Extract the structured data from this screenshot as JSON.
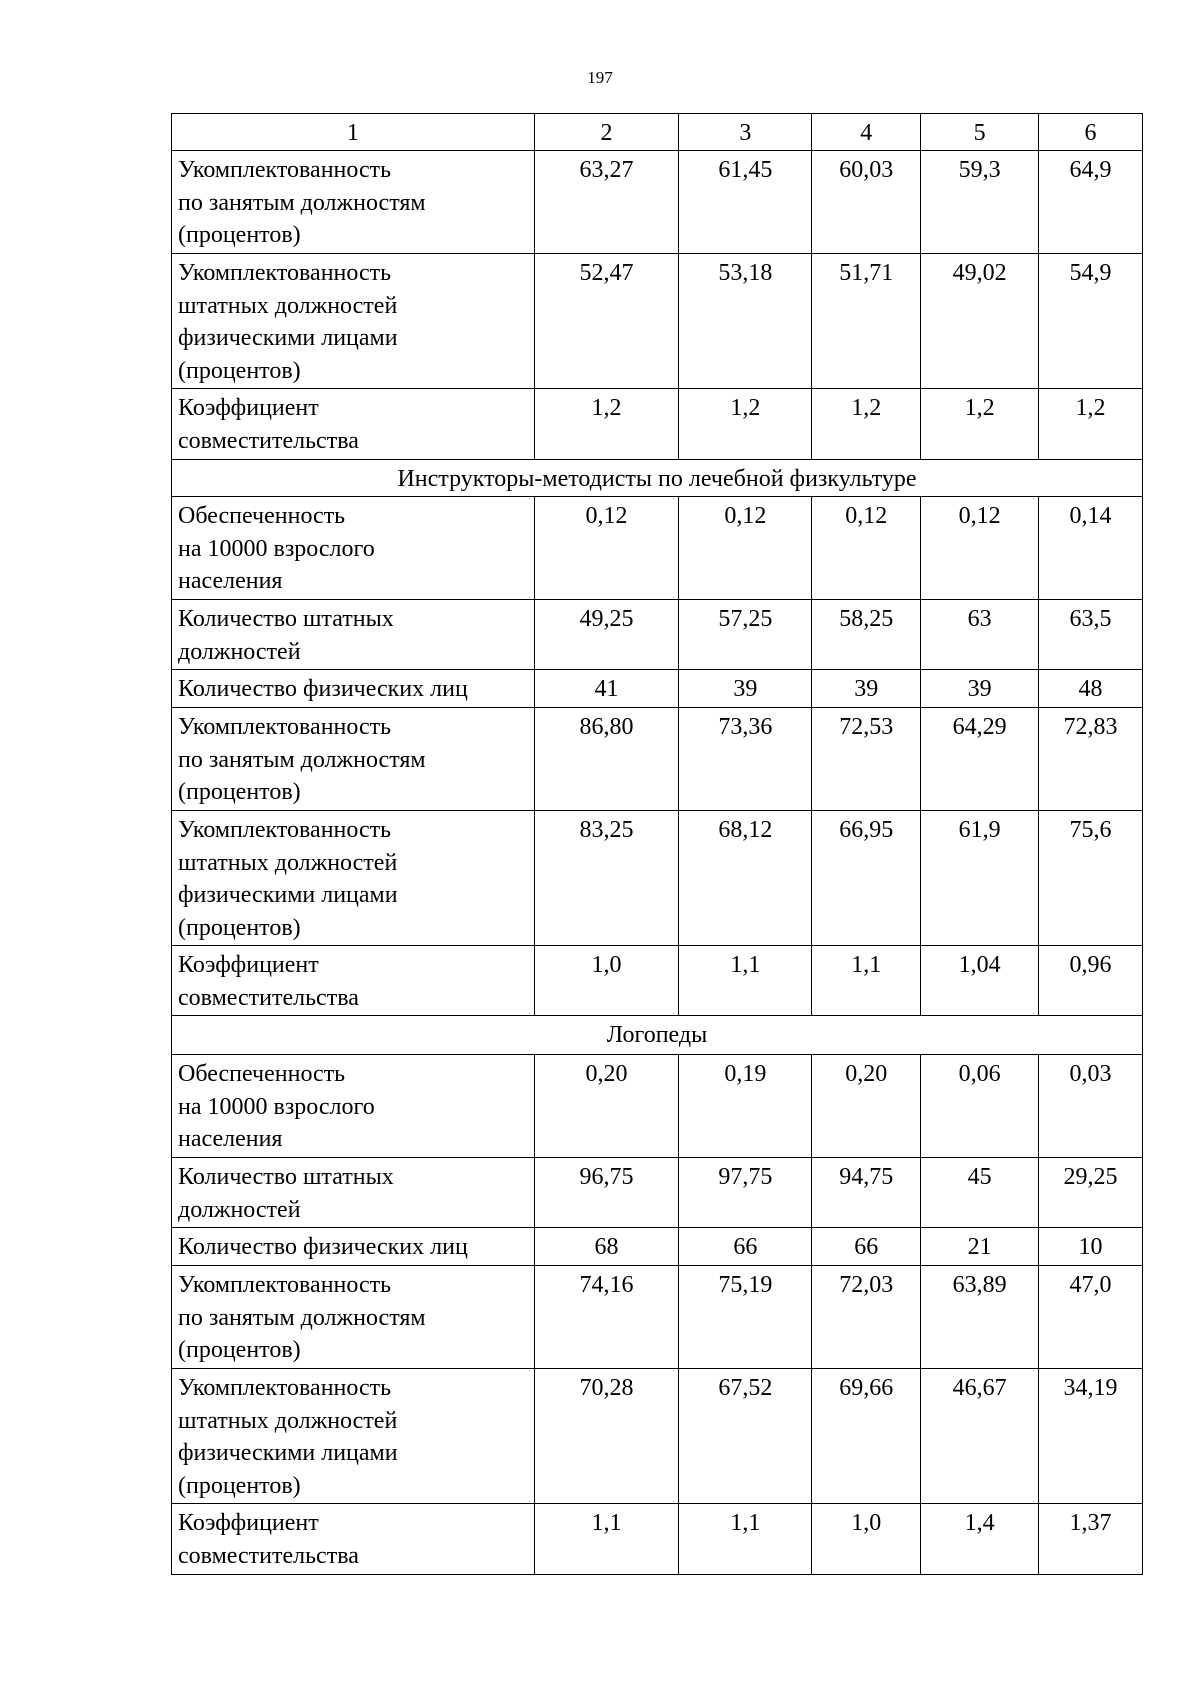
{
  "page_number": "197",
  "header": [
    "1",
    "2",
    "3",
    "4",
    "5",
    "6"
  ],
  "rows": [
    {
      "type": "data",
      "label": "Укомплектованность\nпо занятым должностям\n(процентов)",
      "values": [
        "63,27",
        "61,45",
        "60,03",
        "59,3",
        "64,9"
      ]
    },
    {
      "type": "data",
      "label": "Укомплектованность\nштатных должностей\nфизическими лицами\n(процентов)",
      "values": [
        "52,47",
        "53,18",
        "51,71",
        "49,02",
        "54,9"
      ]
    },
    {
      "type": "data",
      "label": "Коэффициент\nсовместительства",
      "values": [
        "1,2",
        "1,2",
        "1,2",
        "1,2",
        "1,2"
      ]
    },
    {
      "type": "section",
      "label": "Инструкторы-методисты по лечебной физкультуре"
    },
    {
      "type": "data",
      "label": "Обеспеченность\nна 10000 взрослого\nнаселения",
      "values": [
        "0,12",
        "0,12",
        "0,12",
        "0,12",
        "0,14"
      ]
    },
    {
      "type": "data",
      "label": "Количество штатных\nдолжностей",
      "values": [
        "49,25",
        "57,25",
        "58,25",
        "63",
        "63,5"
      ]
    },
    {
      "type": "data",
      "label": "Количество физических лиц",
      "values": [
        "41",
        "39",
        "39",
        "39",
        "48"
      ]
    },
    {
      "type": "data",
      "label": "Укомплектованность\nпо занятым должностям\n(процентов)",
      "values": [
        "86,80",
        "73,36",
        "72,53",
        "64,29",
        "72,83"
      ]
    },
    {
      "type": "data",
      "label": "Укомплектованность\nштатных должностей\nфизическими лицами\n(процентов)",
      "values": [
        "83,25",
        "68,12",
        "66,95",
        "61,9",
        "75,6"
      ]
    },
    {
      "type": "data",
      "label": "Коэффициент\nсовместительства",
      "values": [
        "1,0",
        "1,1",
        "1,1",
        "1,04",
        "0,96"
      ]
    },
    {
      "type": "section",
      "label": "Логопеды"
    },
    {
      "type": "data",
      "label": "Обеспеченность\nна 10000 взрослого\nнаселения",
      "values": [
        "0,20",
        "0,19",
        "0,20",
        "0,06",
        "0,03"
      ]
    },
    {
      "type": "data",
      "label": "Количество штатных\nдолжностей",
      "values": [
        "96,75",
        "97,75",
        "94,75",
        "45",
        "29,25"
      ]
    },
    {
      "type": "data",
      "label": "Количество физических лиц",
      "values": [
        "68",
        "66",
        "66",
        "21",
        "10"
      ]
    },
    {
      "type": "data",
      "label": "Укомплектованность\nпо занятым должностям\n(процентов)",
      "values": [
        "74,16",
        "75,19",
        "72,03",
        "63,89",
        "47,0"
      ]
    },
    {
      "type": "data",
      "label": "Укомплектованность\nштатных должностей\nфизическими лицами\n(процентов)",
      "values": [
        "70,28",
        "67,52",
        "69,66",
        "46,67",
        "34,19"
      ]
    },
    {
      "type": "data",
      "label": "Коэффициент\nсовместительства",
      "values": [
        "1,1",
        "1,1",
        "1,0",
        "1,4",
        "1,37"
      ]
    }
  ]
}
